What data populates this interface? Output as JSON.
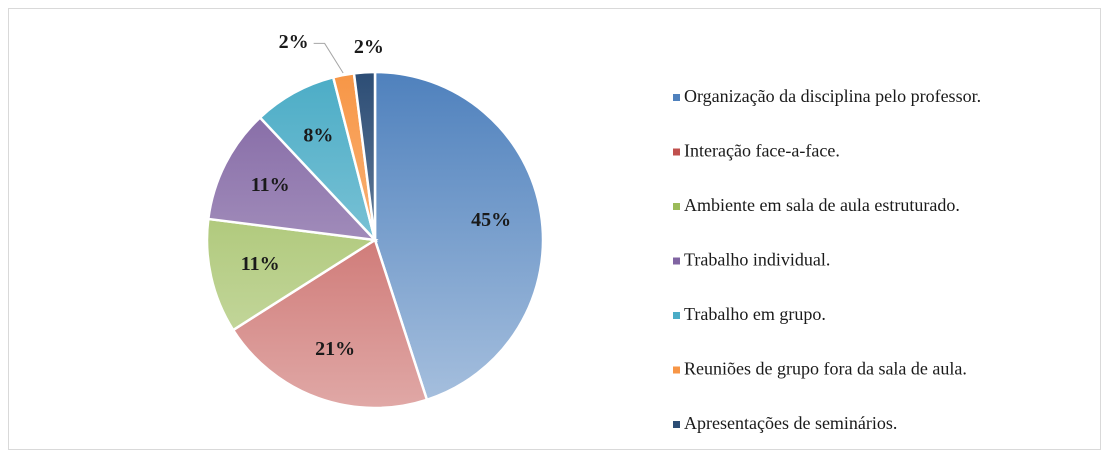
{
  "chart_data": {
    "type": "pie",
    "categories": [
      "Organização da disciplina pelo professor.",
      "Interação face-a-face.",
      "Ambiente em sala de aula estruturado.",
      "Trabalho individual.",
      "Trabalho em grupo.",
      "Reuniões de grupo fora da sala de aula.",
      "Apresentações de seminários."
    ],
    "values": [
      45,
      21,
      11,
      11,
      8,
      2,
      2
    ],
    "value_labels": [
      "45%",
      "21%",
      "11%",
      "11%",
      "8%",
      "2%",
      "2%"
    ],
    "colors": [
      "#4f81bd",
      "#c0504d",
      "#9bbb59",
      "#8064a2",
      "#4bacc6",
      "#f79646",
      "#2c4d75"
    ],
    "legend": "right"
  }
}
